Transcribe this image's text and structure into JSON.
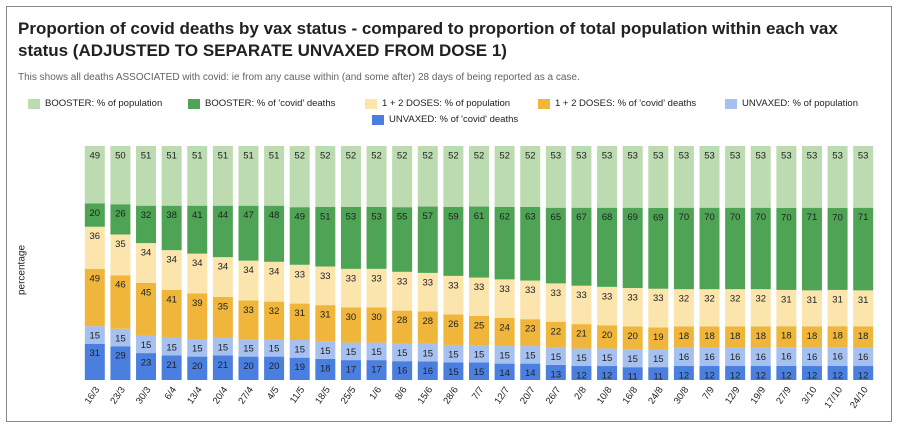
{
  "chart_data": {
    "type": "bar",
    "stacked": true,
    "normalized": true,
    "title": "Proportion of covid deaths by vax status - compared to proportion of total population within each vax status (ADJUSTED TO SEPARATE UNVAXED FROM DOSE 1)",
    "subtitle": "This shows all deaths ASSOCIATED with covid: ie from any cause within (and some after) 28 days of being reported as a case.",
    "ylabel": "percentage",
    "xlabel": "",
    "ylim": [
      0,
      100
    ],
    "legend_position": "top",
    "categories": [
      "16/3",
      "23/3",
      "30/3",
      "6/4",
      "13/4",
      "20/4",
      "27/4",
      "4/5",
      "11/5",
      "18/5",
      "25/5",
      "1/6",
      "8/6",
      "15/6",
      "28/6",
      "7/7",
      "12/7",
      "20/7",
      "26/7",
      "2/8",
      "10/8",
      "16/8",
      "24/8",
      "30/8",
      "7/9",
      "12/9",
      "19/9",
      "27/9",
      "3/10",
      "17/10",
      "24/10"
    ],
    "series": [
      {
        "name": "UNVAXED: % of 'covid' deaths",
        "color": "#4a7fe0",
        "label_color": "#202124",
        "values": [
          31,
          29,
          23,
          21,
          20,
          21,
          20,
          20,
          19,
          18,
          17,
          17,
          16,
          16,
          15,
          15,
          14,
          14,
          13,
          12,
          12,
          11,
          11,
          12,
          12,
          12,
          12,
          12,
          12,
          12,
          12
        ]
      },
      {
        "name": "UNVAXED: % of population",
        "color": "#a6c0ef",
        "label_color": "#202124",
        "values": [
          15,
          15,
          15,
          15,
          15,
          15,
          15,
          15,
          15,
          15,
          15,
          15,
          15,
          15,
          15,
          15,
          15,
          15,
          15,
          15,
          15,
          15,
          15,
          16,
          16,
          16,
          16,
          16,
          16,
          16,
          16
        ]
      },
      {
        "name": "1 + 2 DOSES: % of 'covid' deaths",
        "color": "#efb63b",
        "label_color": "#202124",
        "values": [
          49,
          46,
          45,
          41,
          39,
          35,
          33,
          32,
          31,
          31,
          30,
          30,
          28,
          28,
          26,
          25,
          24,
          23,
          22,
          21,
          20,
          20,
          19,
          18,
          18,
          18,
          18,
          18,
          18,
          18,
          18
        ]
      },
      {
        "name": "1 + 2 DOSES: % of population",
        "color": "#fbe5ad",
        "label_color": "#202124",
        "values": [
          36,
          35,
          34,
          34,
          34,
          34,
          34,
          34,
          33,
          33,
          33,
          33,
          33,
          33,
          33,
          33,
          33,
          33,
          33,
          33,
          33,
          33,
          33,
          32,
          32,
          32,
          32,
          31,
          31,
          31,
          31
        ]
      },
      {
        "name": "BOOSTER: % of 'covid' deaths",
        "color": "#4ea454",
        "label_color": "#202124",
        "values": [
          20,
          26,
          32,
          38,
          41,
          44,
          47,
          48,
          49,
          51,
          53,
          53,
          55,
          57,
          59,
          61,
          62,
          63,
          65,
          67,
          68,
          69,
          69,
          70,
          70,
          70,
          70,
          70,
          71,
          70,
          71
        ]
      },
      {
        "name": "BOOSTER: % of population",
        "color": "#bcdbb0",
        "label_color": "#202124",
        "values": [
          49,
          50,
          51,
          51,
          51,
          51,
          51,
          51,
          52,
          52,
          52,
          52,
          52,
          52,
          52,
          52,
          52,
          52,
          53,
          53,
          53,
          53,
          53,
          53,
          53,
          53,
          53,
          53,
          53,
          53,
          53
        ]
      }
    ]
  },
  "legend": [
    {
      "label": "BOOSTER: % of population",
      "color": "#bcdbb0"
    },
    {
      "label": "BOOSTER: % of 'covid' deaths",
      "color": "#4ea454"
    },
    {
      "label": "1 + 2 DOSES: % of population",
      "color": "#fbe5ad"
    },
    {
      "label": "1 + 2 DOSES: % of 'covid' deaths",
      "color": "#efb63b"
    },
    {
      "label": "UNVAXED: % of population",
      "color": "#a6c0ef"
    },
    {
      "label": "UNVAXED: % of 'covid' deaths",
      "color": "#4a7fe0"
    }
  ]
}
